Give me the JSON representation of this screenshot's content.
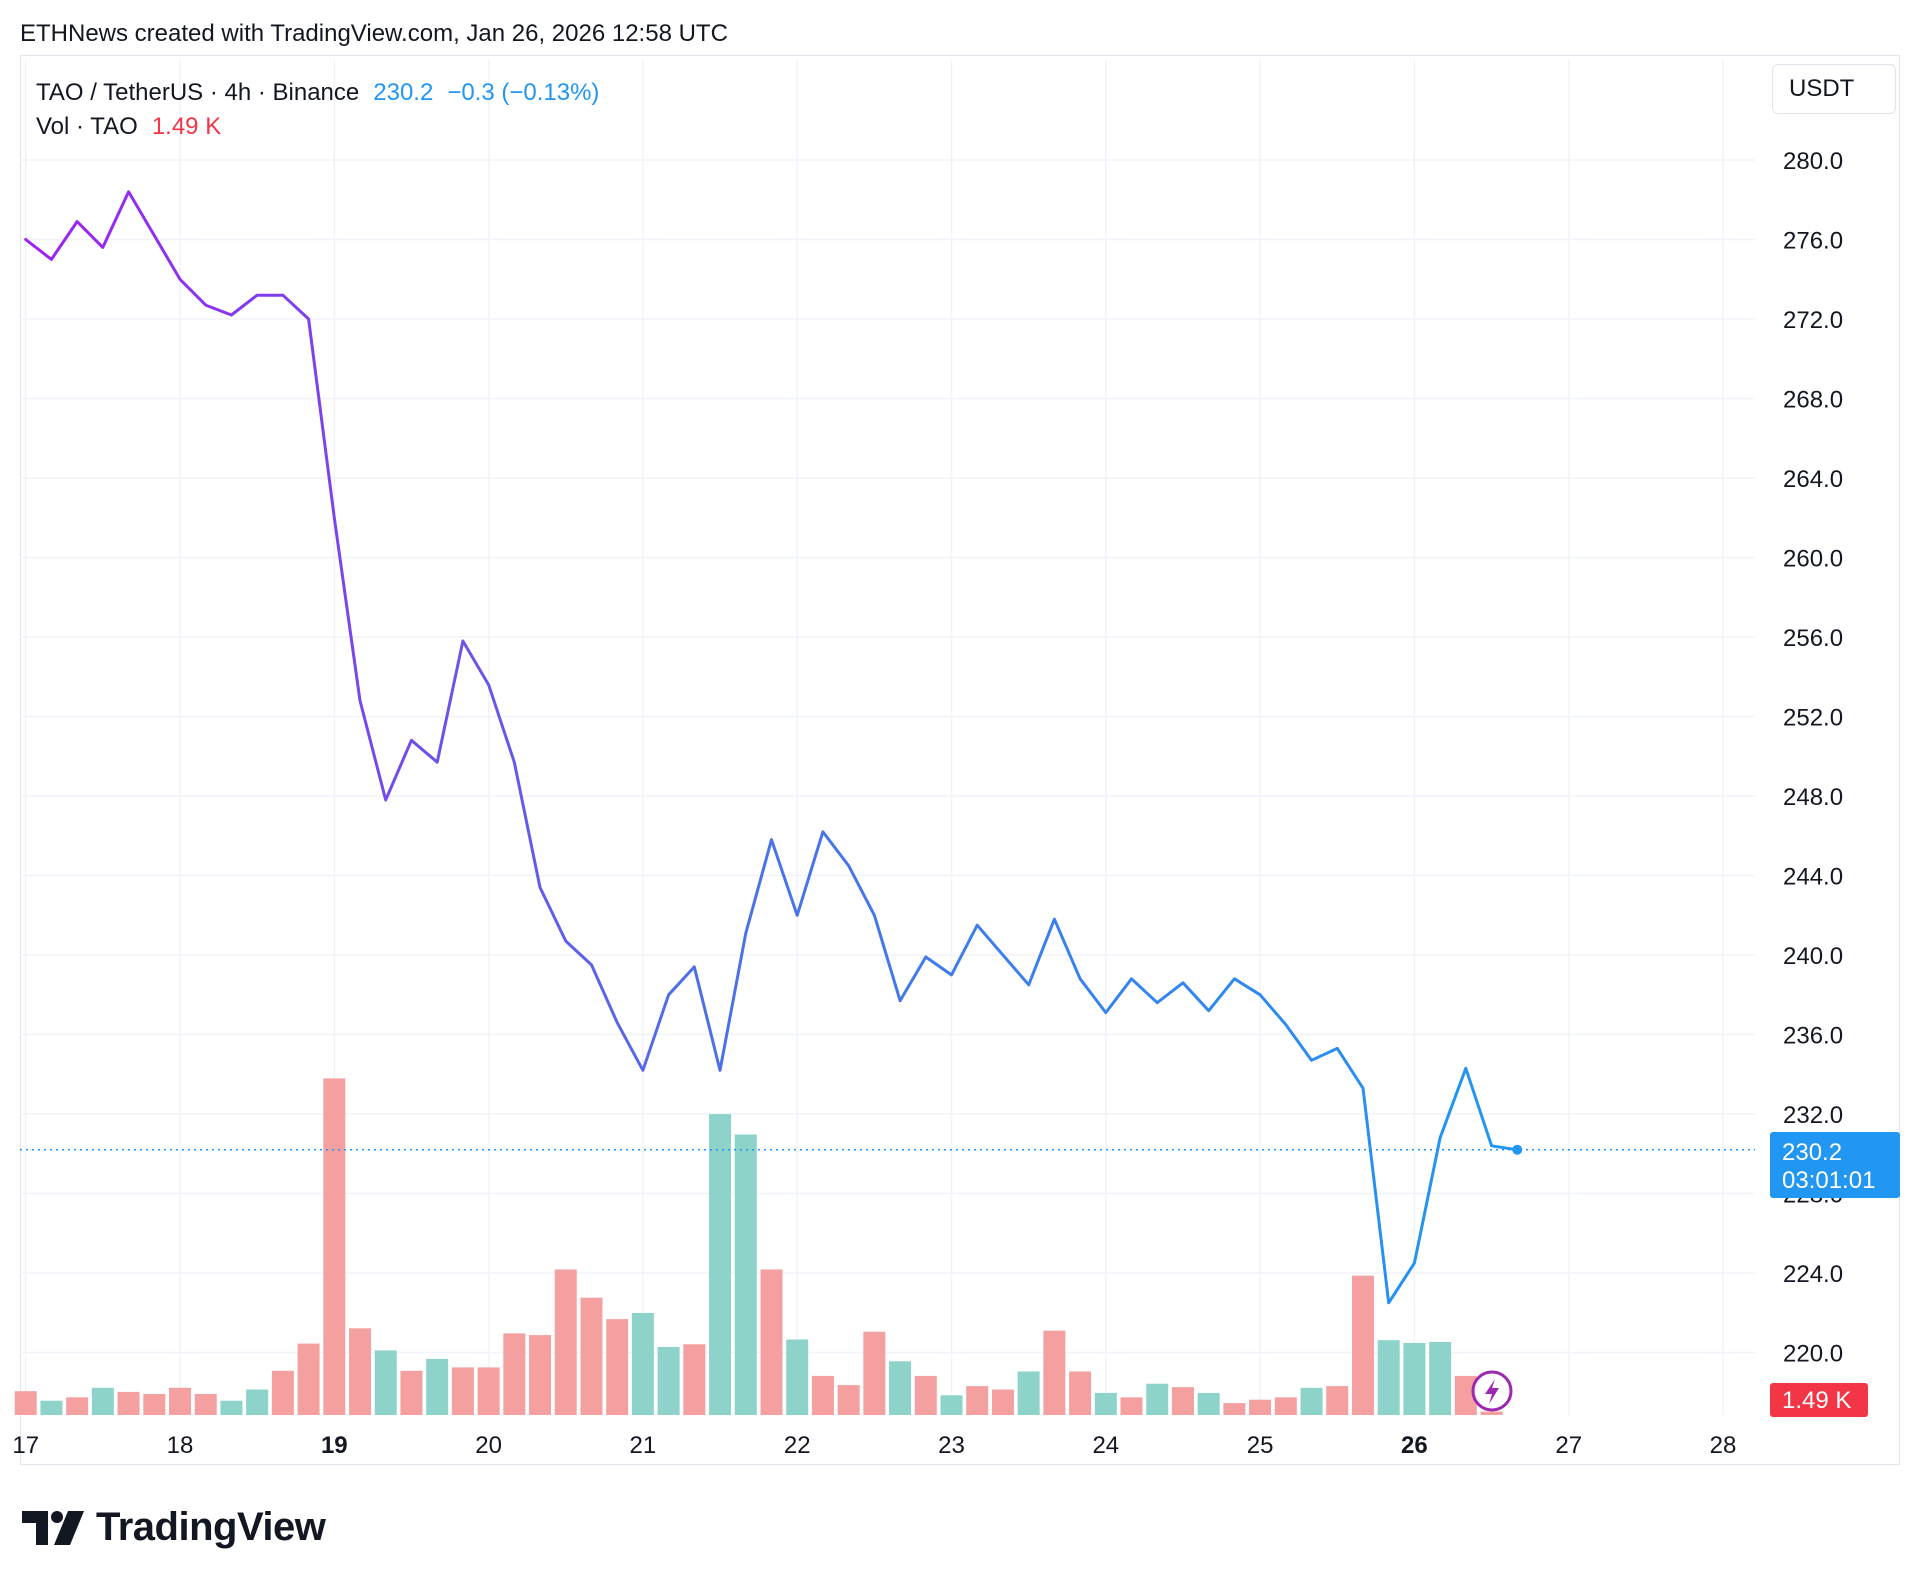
{
  "header": {
    "attribution": "ETHNews created with TradingView.com, Jan 26, 2026 12:58 UTC"
  },
  "legend": {
    "symbol": "TAO / TetherUS · 4h · Binance",
    "price": "230.2",
    "change": "−0.3 (−0.13%)",
    "volume_label": "Vol · TAO",
    "volume_value": "1.49 K"
  },
  "currency_button": "USDT",
  "price_badge": {
    "price": "230.2",
    "countdown": "03:01:01"
  },
  "volume_badge": "1.49 K",
  "brand": {
    "name": "TradingView"
  },
  "colors": {
    "line_start": "#a020f0",
    "line_mid": "#4f6ee8",
    "line_end": "#2196f3",
    "volume_up": "#8ed3c9",
    "volume_down": "#f5a0a0",
    "badge_blue": "#2196f3",
    "badge_red": "#f23645",
    "grid": "#f0f3fa",
    "axis_text": "#131722"
  },
  "icons": {
    "brand": "tradingview-logo-icon",
    "flash": "lightning-icon"
  },
  "chart_data": {
    "type": "line",
    "y_axis": {
      "side": "right",
      "ylim": [
        216.0,
        284.0
      ],
      "ticks": [
        "280.0",
        "276.0",
        "272.0",
        "268.0",
        "264.0",
        "260.0",
        "256.0",
        "252.0",
        "248.0",
        "244.0",
        "240.0",
        "236.0",
        "232.0",
        "228.0",
        "224.0",
        "220.0"
      ]
    },
    "x_axis": {
      "ticks": [
        {
          "label": "17",
          "day": 17,
          "bold": false
        },
        {
          "label": "18",
          "day": 18,
          "bold": false
        },
        {
          "label": "19",
          "day": 19,
          "bold": true
        },
        {
          "label": "20",
          "day": 20,
          "bold": false
        },
        {
          "label": "21",
          "day": 21,
          "bold": false
        },
        {
          "label": "22",
          "day": 22,
          "bold": false
        },
        {
          "label": "23",
          "day": 23,
          "bold": false
        },
        {
          "label": "24",
          "day": 24,
          "bold": false
        },
        {
          "label": "25",
          "day": 25,
          "bold": false
        },
        {
          "label": "26",
          "day": 26,
          "bold": true
        },
        {
          "label": "27",
          "day": 27,
          "bold": false
        },
        {
          "label": "28",
          "day": 28,
          "bold": false
        }
      ]
    },
    "interval": "4h",
    "series": [
      {
        "name": "TAO / TetherUS",
        "start_day": 17.0,
        "values": [
          276.0,
          275.0,
          276.9,
          275.6,
          278.4,
          276.2,
          274.0,
          272.7,
          272.2,
          273.2,
          273.2,
          272.0,
          262.0,
          252.8,
          247.8,
          250.8,
          249.7,
          255.8,
          253.6,
          249.7,
          243.4,
          240.7,
          239.5,
          236.6,
          234.2,
          238.0,
          239.4,
          234.2,
          241.1,
          245.8,
          242.0,
          246.2,
          244.5,
          242.0,
          237.7,
          239.9,
          239.0,
          241.5,
          240.0,
          238.5,
          241.8,
          238.8,
          237.1,
          238.8,
          237.6,
          238.6,
          237.2,
          238.8,
          238.0,
          236.5,
          234.7,
          235.3,
          233.3,
          222.5,
          224.5,
          230.8,
          234.3,
          230.4,
          230.2
        ]
      }
    ],
    "volume": {
      "unit": "TAO",
      "scale_max": 1000,
      "bars": [
        {
          "v": 70,
          "d": "down"
        },
        {
          "v": 42,
          "d": "up"
        },
        {
          "v": 52,
          "d": "down"
        },
        {
          "v": 80,
          "d": "up"
        },
        {
          "v": 68,
          "d": "down"
        },
        {
          "v": 62,
          "d": "down"
        },
        {
          "v": 80,
          "d": "down"
        },
        {
          "v": 62,
          "d": "down"
        },
        {
          "v": 42,
          "d": "up"
        },
        {
          "v": 75,
          "d": "up"
        },
        {
          "v": 130,
          "d": "down"
        },
        {
          "v": 210,
          "d": "down"
        },
        {
          "v": 990,
          "d": "down"
        },
        {
          "v": 255,
          "d": "down"
        },
        {
          "v": 190,
          "d": "up"
        },
        {
          "v": 130,
          "d": "down"
        },
        {
          "v": 165,
          "d": "up"
        },
        {
          "v": 140,
          "d": "down"
        },
        {
          "v": 140,
          "d": "down"
        },
        {
          "v": 240,
          "d": "down"
        },
        {
          "v": 235,
          "d": "down"
        },
        {
          "v": 428,
          "d": "down"
        },
        {
          "v": 345,
          "d": "down"
        },
        {
          "v": 282,
          "d": "down"
        },
        {
          "v": 300,
          "d": "up"
        },
        {
          "v": 200,
          "d": "up"
        },
        {
          "v": 208,
          "d": "down"
        },
        {
          "v": 885,
          "d": "up"
        },
        {
          "v": 825,
          "d": "up"
        },
        {
          "v": 428,
          "d": "down"
        },
        {
          "v": 222,
          "d": "up"
        },
        {
          "v": 115,
          "d": "down"
        },
        {
          "v": 88,
          "d": "down"
        },
        {
          "v": 245,
          "d": "down"
        },
        {
          "v": 158,
          "d": "up"
        },
        {
          "v": 115,
          "d": "down"
        },
        {
          "v": 58,
          "d": "up"
        },
        {
          "v": 85,
          "d": "down"
        },
        {
          "v": 75,
          "d": "down"
        },
        {
          "v": 128,
          "d": "up"
        },
        {
          "v": 248,
          "d": "down"
        },
        {
          "v": 128,
          "d": "down"
        },
        {
          "v": 65,
          "d": "up"
        },
        {
          "v": 52,
          "d": "down"
        },
        {
          "v": 92,
          "d": "up"
        },
        {
          "v": 82,
          "d": "down"
        },
        {
          "v": 65,
          "d": "up"
        },
        {
          "v": 35,
          "d": "down"
        },
        {
          "v": 45,
          "d": "down"
        },
        {
          "v": 52,
          "d": "down"
        },
        {
          "v": 80,
          "d": "up"
        },
        {
          "v": 85,
          "d": "down"
        },
        {
          "v": 410,
          "d": "down"
        },
        {
          "v": 220,
          "d": "up"
        },
        {
          "v": 212,
          "d": "up"
        },
        {
          "v": 215,
          "d": "up"
        },
        {
          "v": 115,
          "d": "down"
        },
        {
          "v": 10,
          "d": "down"
        }
      ]
    },
    "last_price_line": 230.2,
    "grid": true
  }
}
